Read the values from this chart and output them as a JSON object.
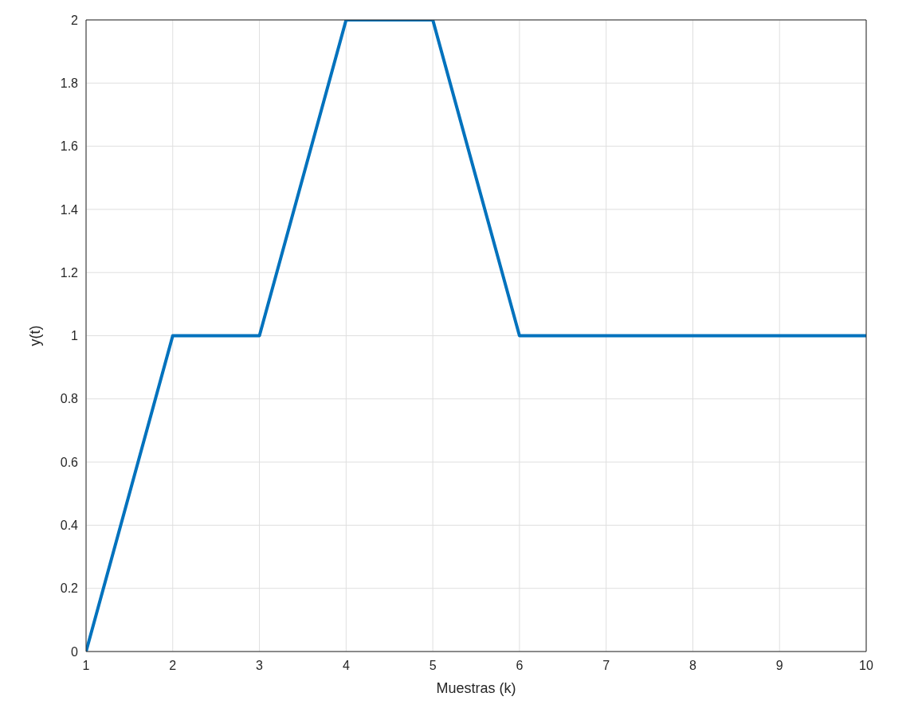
{
  "chart_data": {
    "type": "line",
    "xlabel": "Muestras (k)",
    "ylabel": "y(t)",
    "x": [
      1,
      2,
      3,
      4,
      5,
      6,
      7,
      8,
      9,
      10
    ],
    "series": [
      {
        "color": "#0072bd",
        "values": [
          0,
          1,
          1,
          2,
          2,
          1,
          1,
          1,
          1,
          1
        ]
      }
    ],
    "xlim": [
      1,
      10
    ],
    "xticks": [
      1,
      2,
      3,
      4,
      5,
      6,
      7,
      8,
      9,
      10
    ],
    "ylim": [
      0,
      2
    ],
    "yticks": [
      0,
      0.2,
      0.4,
      0.6,
      0.8,
      1,
      1.2,
      1.4,
      1.6,
      1.8,
      2
    ],
    "grid": true,
    "legend": false,
    "marker": "none",
    "line_style": "solid"
  }
}
